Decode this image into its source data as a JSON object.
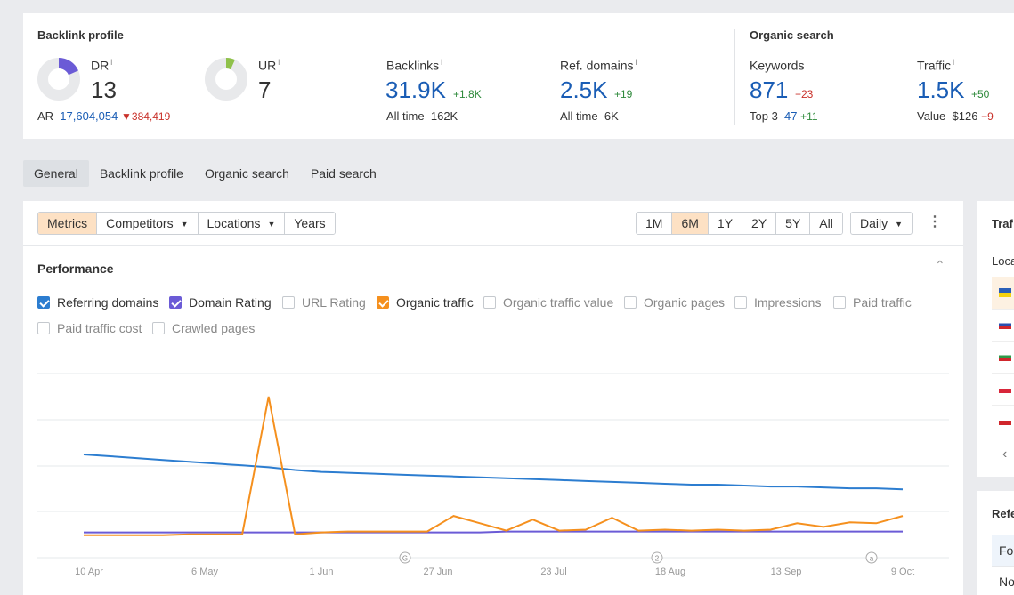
{
  "backlink_profile": {
    "title": "Backlink profile",
    "dr": {
      "label": "DR",
      "info": "i",
      "value": "13",
      "fill_percent": 13,
      "color": "#6b5bd6"
    },
    "ur": {
      "label": "UR",
      "info": "i",
      "value": "7",
      "fill_percent": 7,
      "color": "#8fc14a"
    },
    "ar": {
      "label": "AR",
      "value": "17,604,054",
      "delta": "384,419"
    },
    "backlinks": {
      "label": "Backlinks",
      "info": "i",
      "value": "31.9K",
      "delta": "+1.8K",
      "sub_label": "All time",
      "sub_value": "162K"
    },
    "ref_domains": {
      "label": "Ref. domains",
      "info": "i",
      "value": "2.5K",
      "delta": "+19",
      "sub_label": "All time",
      "sub_value": "6K"
    }
  },
  "organic_search": {
    "title": "Organic search",
    "keywords": {
      "label": "Keywords",
      "info": "i",
      "value": "871",
      "delta": "−23",
      "sub_label": "Top 3",
      "sub_value": "47",
      "sub_delta": "+11"
    },
    "traffic": {
      "label": "Traffic",
      "info": "i",
      "value": "1.5K",
      "delta": "+50",
      "sub_label": "Value",
      "sub_value": "$126",
      "sub_delta": "−9"
    }
  },
  "tabs": [
    "General",
    "Backlink profile",
    "Organic search",
    "Paid search"
  ],
  "toolbar": {
    "metrics": "Metrics",
    "competitors": "Competitors",
    "locations": "Locations",
    "years": "Years",
    "ranges": [
      "1M",
      "6M",
      "1Y",
      "2Y",
      "5Y",
      "All"
    ],
    "active_range": "6M",
    "granularity": "Daily"
  },
  "performance": {
    "title": "Performance",
    "checkboxes": [
      {
        "label": "Referring domains",
        "checked": true,
        "color": "#2c7dd0"
      },
      {
        "label": "Domain Rating",
        "checked": true,
        "color": "#6b5bd6"
      },
      {
        "label": "URL Rating",
        "checked": false
      },
      {
        "label": "Organic traffic",
        "checked": true,
        "color": "#f5901e"
      },
      {
        "label": "Organic traffic value",
        "checked": false
      },
      {
        "label": "Organic pages",
        "checked": false
      },
      {
        "label": "Impressions",
        "checked": false
      },
      {
        "label": "Paid traffic",
        "checked": false
      },
      {
        "label": "Paid traffic cost",
        "checked": false
      },
      {
        "label": "Crawled pages",
        "checked": false
      }
    ]
  },
  "chart_data": {
    "type": "line",
    "x_tick_labels": [
      "10 Apr",
      "6 May",
      "1 Jun",
      "27 Jun",
      "23 Jul",
      "18 Aug",
      "13 Sep",
      "9 Oct"
    ],
    "annotation_markers": [
      "G",
      "2",
      "a"
    ],
    "grid": true,
    "series": [
      {
        "name": "Referring domains",
        "color": "#2c7dd0",
        "values": [
          97,
          95,
          93,
          91,
          89,
          87,
          85,
          83,
          80,
          78,
          77,
          76,
          75,
          74,
          73,
          72,
          71,
          70,
          69,
          68,
          67,
          66,
          65,
          64,
          64,
          63,
          62,
          62,
          61,
          60,
          60,
          59
        ]
      },
      {
        "name": "Domain Rating",
        "color": "#6b5bd6",
        "values": [
          12,
          12,
          12,
          12,
          12,
          12,
          12,
          12,
          12,
          12,
          12,
          12,
          12,
          12,
          12,
          12,
          13,
          13,
          13,
          13,
          13,
          13,
          13,
          13,
          13,
          13,
          13,
          13,
          13,
          13,
          13,
          13
        ]
      },
      {
        "name": "Organic traffic",
        "color": "#f5901e",
        "values": [
          9,
          9,
          9,
          9,
          10,
          10,
          10,
          160,
          10,
          12,
          13,
          13,
          13,
          13,
          30,
          22,
          14,
          26,
          14,
          15,
          28,
          14,
          15,
          14,
          15,
          14,
          15,
          22,
          18,
          23,
          22,
          30
        ]
      }
    ]
  },
  "sidebar": {
    "traffic_title": "Traf",
    "locations_label": "Loca",
    "referring_title": "Refe",
    "rows": [
      "Fo",
      "No"
    ]
  }
}
